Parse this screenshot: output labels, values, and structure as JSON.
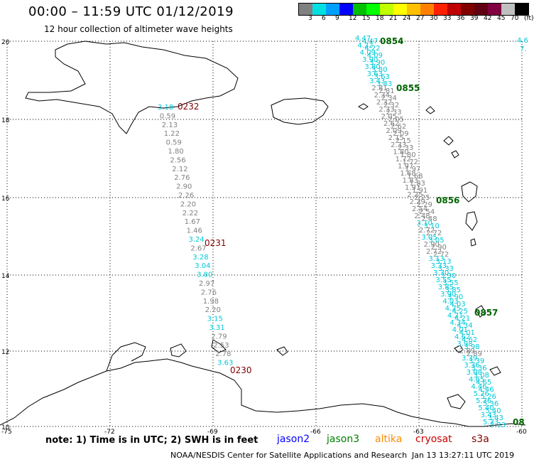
{
  "header": {
    "title": "00:00 – 11:59 UTC 01/12/2019",
    "subtitle": "12 hour collection of altimeter wave heights"
  },
  "colorbar": {
    "colors": [
      "#808080",
      "#00e0e0",
      "#00a0ff",
      "#0000ff",
      "#00c000",
      "#00ff00",
      "#c0ff00",
      "#ffff00",
      "#ffc000",
      "#ff8000",
      "#ff2000",
      "#c00000",
      "#800000",
      "#600010",
      "#800040",
      "#c0c0c0",
      "#000000"
    ],
    "labels": [
      "3",
      "6",
      "9",
      "12",
      "15",
      "18",
      "21",
      "24",
      "27",
      "30",
      "33",
      "36",
      "39",
      "42",
      "45",
      "70",
      "(ft)"
    ]
  },
  "axes": {
    "lat_labels": [
      "20",
      "18",
      "16",
      "14",
      "12",
      "10"
    ],
    "lon_labels": [
      "-75",
      "-72",
      "-69",
      "-66",
      "-63",
      "-60"
    ]
  },
  "passes": {
    "west_times": [
      "0232",
      "0231",
      "0230"
    ],
    "west_values": [
      "3.18",
      "0.59",
      "2.13",
      "1.22",
      "0.59",
      "1.80",
      "2.56",
      "2.12",
      "2.76",
      "2.90",
      "2.26",
      "2.20",
      "2.22",
      "1.67",
      "1.46",
      "3.24",
      "2.67",
      "3.28",
      "3.04",
      "3.80",
      "2.97",
      "2.76",
      "1.98",
      "2.20",
      "3.15",
      "3.31",
      "2.79",
      "2.53",
      "2.78",
      "3.63"
    ],
    "east_times": [
      "0854",
      "0855",
      "0856",
      "0857",
      "08"
    ],
    "east_values": [
      "4.47",
      "4.22",
      "4.09",
      "3.90",
      "3.80",
      "3.63",
      "3.43",
      "2.81",
      "2.34",
      "2.32",
      "2.33",
      "2.05",
      "2.62",
      "2.09",
      "2.15",
      "2.33",
      "1.80",
      "1.72",
      "1.97",
      "1.68",
      "1.83",
      "1.91",
      "2.25",
      "2.29",
      "2.54",
      "2.48",
      "3.10",
      "2.72",
      "3.05",
      "2.90",
      "2.72",
      "3.13",
      "3.33",
      "3.30",
      "3.55",
      "3.85",
      "3.90",
      "4.03",
      "4.25",
      "4.21",
      "4.34",
      "4.01",
      "4.62",
      "3.98",
      "2.89",
      "3.39",
      "3.36",
      "3.08",
      "4.65",
      "4.46",
      "5.26",
      "5.36",
      "5.40",
      "3.43",
      "5.33"
    ],
    "far_east_values": [
      "4.6",
      "7."
    ]
  },
  "legend": {
    "note": "note: 1) Time is in UTC; 2) SWH is in feet",
    "sats": [
      {
        "name": "jason2",
        "color": "#0000ff"
      },
      {
        "name": "jason3",
        "color": "#008000"
      },
      {
        "name": "altika",
        "color": "#ff8c00"
      },
      {
        "name": "cryosat",
        "color": "#cc0000"
      },
      {
        "name": "s3a",
        "color": "#800000"
      }
    ],
    "credit": "NOAA/NESDIS Center for Satellite Applications and Research",
    "timestamp": "Jan 13 13:27:11 UTC 2019"
  }
}
